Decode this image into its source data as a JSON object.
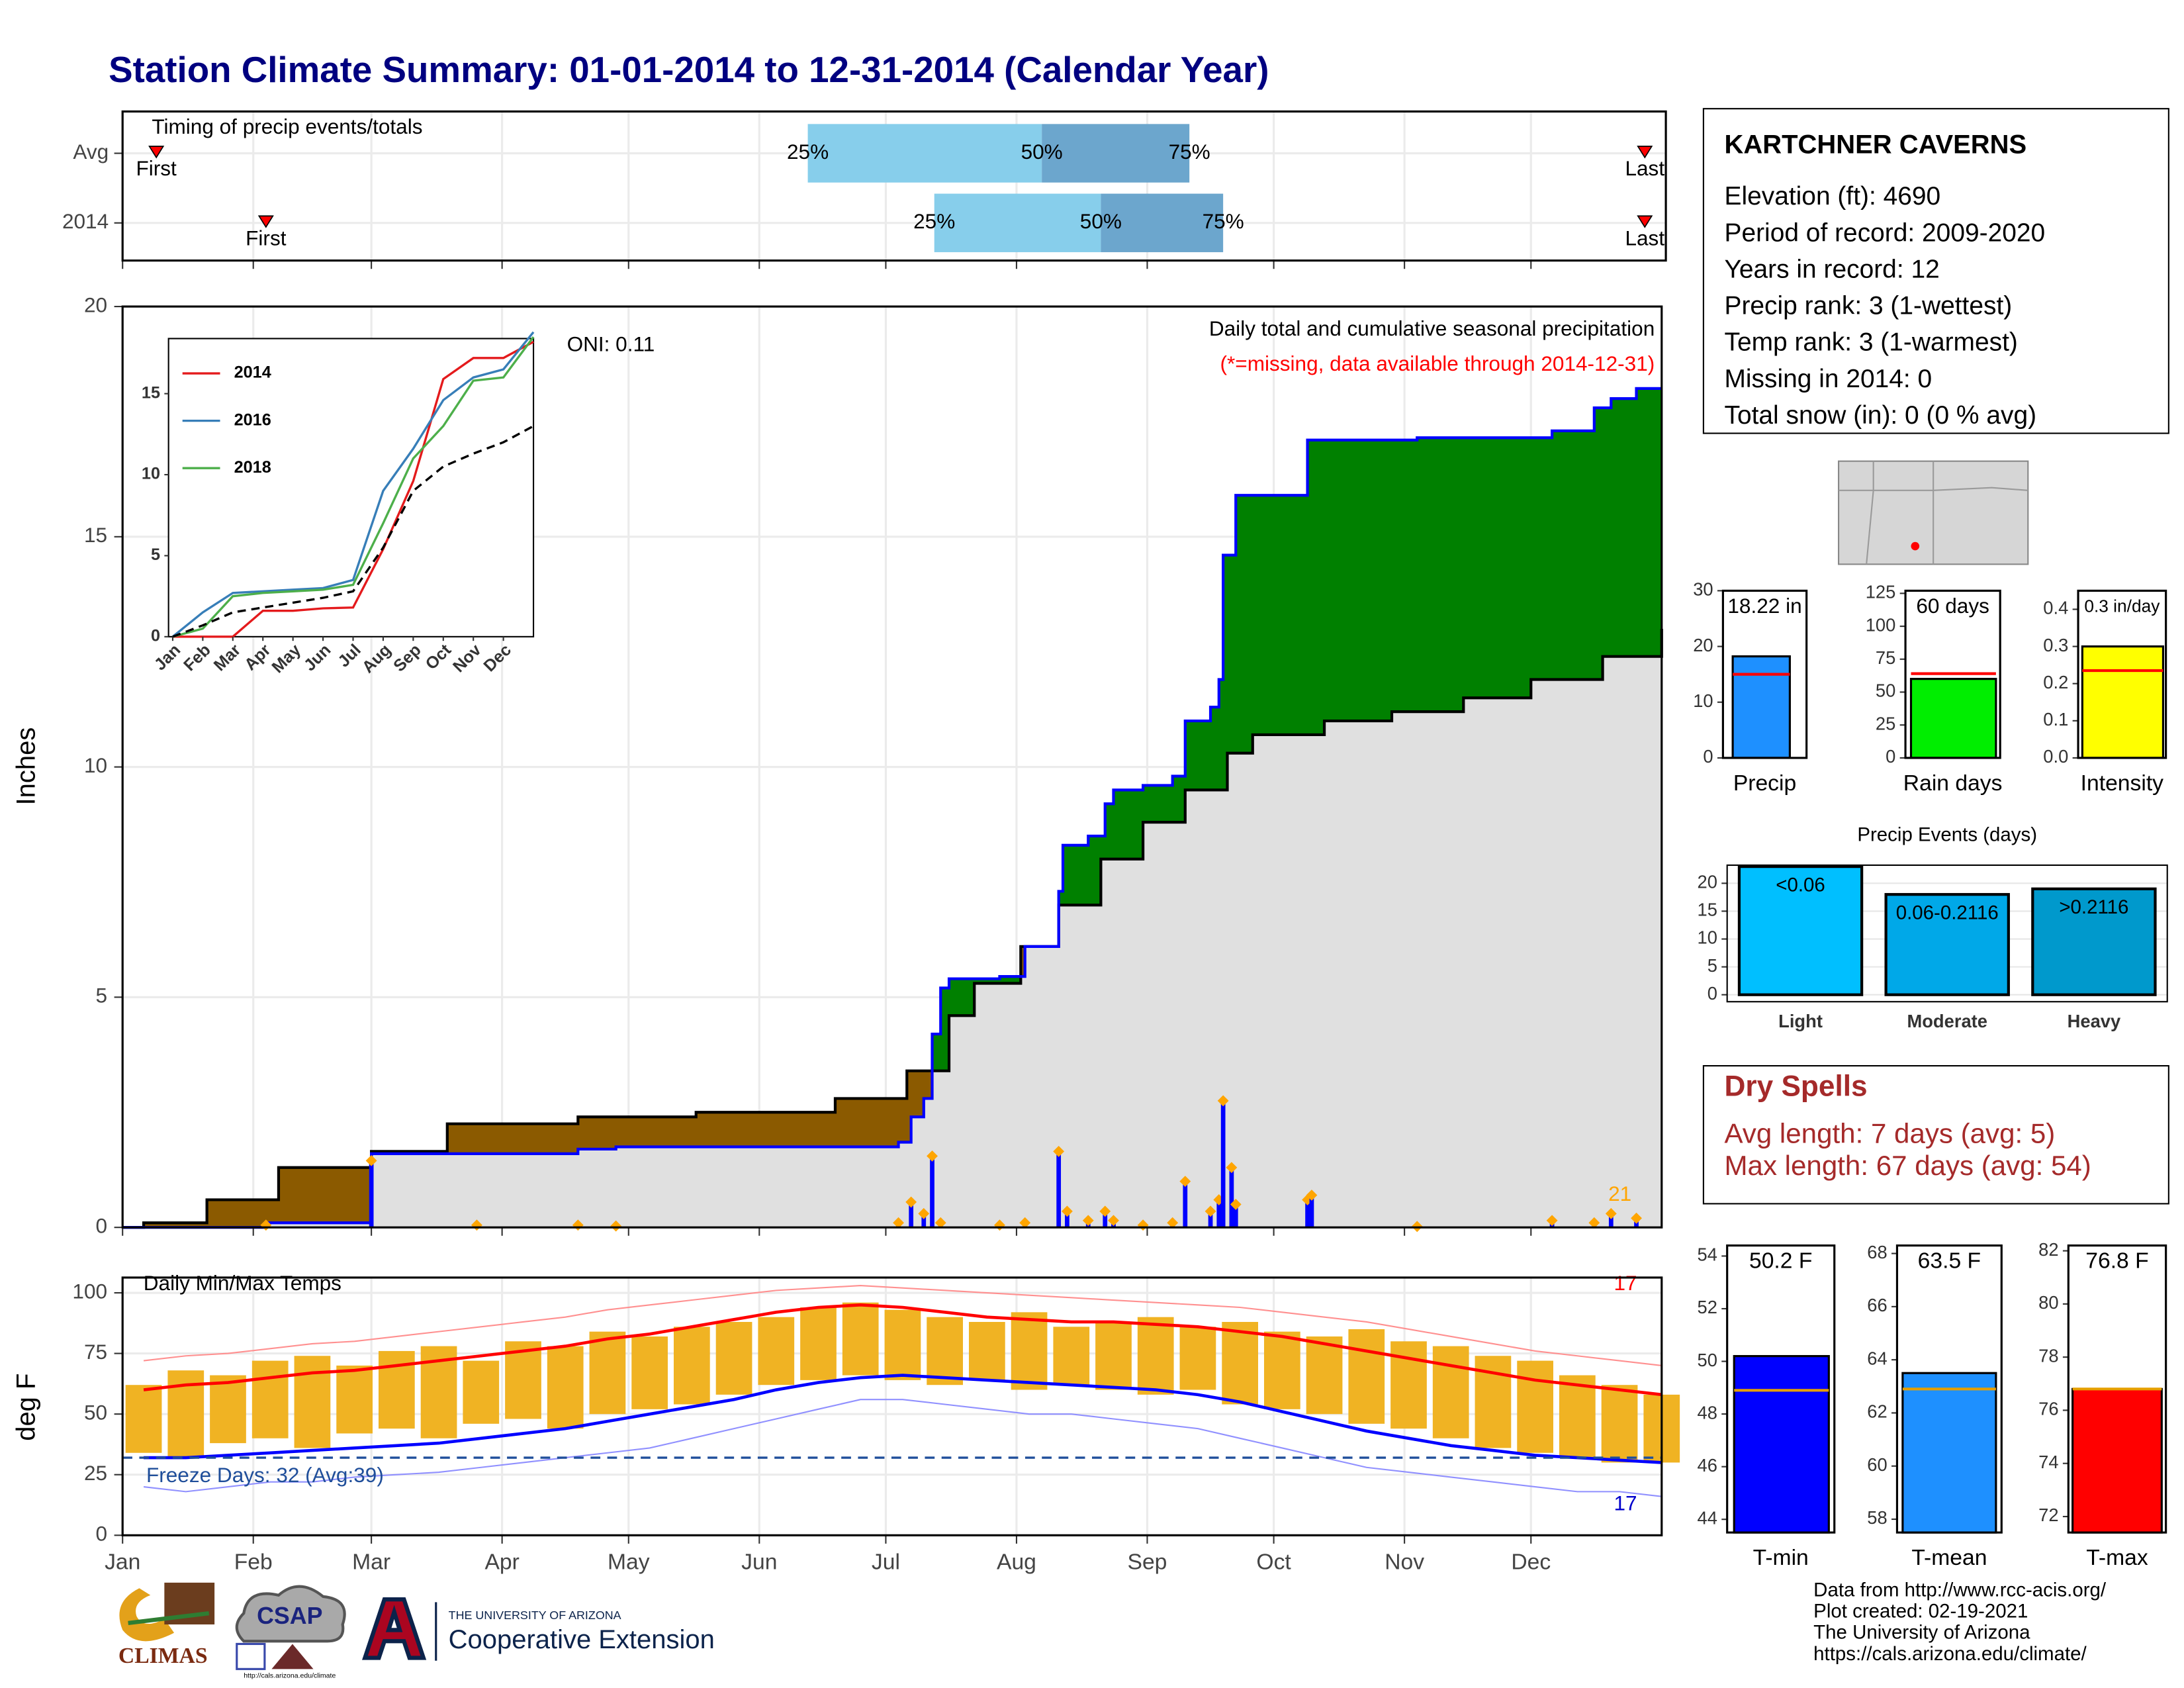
{
  "title": "Station Climate Summary: 01-01-2014 to 12-31-2014 (Calendar Year)",
  "station": {
    "name": "KARTCHNER CAVERNS",
    "lines": [
      "Elevation (ft): 4690",
      "Period of record: 2009-2020",
      "Years in record: 12",
      "Precip rank: 3 (1-wettest)",
      "Temp rank: 3 (1-warmest)",
      "Missing in 2014: 0",
      "Total snow (in): 0 (0 % avg)"
    ]
  },
  "dry_spells": {
    "title": "Dry Spells",
    "lines": [
      "Avg length: 7 days (avg: 5)",
      "Max length: 67 days (avg: 54)"
    ]
  },
  "footer": [
    "Data from http://www.rcc-acis.org/",
    "Plot created: 02-19-2021",
    "The University of Arizona",
    "https://cals.arizona.edu/climate/"
  ],
  "logos": {
    "climas": "CLIMAS",
    "csap": "CSAP",
    "csap_url": "http://cals.arizona.edu/climate",
    "ua_small": "THE UNIVERSITY OF ARIZONA",
    "ua_large": "Cooperative Extension"
  },
  "chart_data": [
    {
      "type": "timing",
      "title": "Timing of precip events/totals",
      "xlim": [
        0,
        365
      ],
      "rows": [
        "Avg",
        "2014"
      ],
      "first": [
        8,
        34
      ],
      "q25": [
        162.5,
        192.5
      ],
      "q50": [
        218,
        232
      ],
      "q75": [
        253,
        261
      ],
      "last": [
        361,
        361
      ],
      "labels": {
        "first": "First",
        "last": "Last",
        "q25": "25%",
        "q50": "50%",
        "q75": "75%"
      },
      "colors": {
        "low": "#87ceeb",
        "high": "#6ca6cd",
        "marker": "#ff0000"
      }
    },
    {
      "type": "cumulative_precip",
      "title": "Daily total and cumulative seasonal precipitation",
      "subtitle": "(*=missing, data available through 2014-12-31)",
      "annotation": "ONI: 0.11",
      "count_label": 21,
      "ylabel": "Inches",
      "xlim": [
        0,
        365
      ],
      "ylim": [
        0,
        20
      ],
      "yticks": [
        0,
        5,
        10,
        15,
        20
      ],
      "grid": true,
      "overlap_color": "#e0e0e0",
      "series": [
        {
          "color": "#0000ff",
          "fill": "#008000",
          "x": [
            0,
            34,
            59,
            108,
            117,
            184,
            187,
            190,
            192,
            194,
            196,
            208,
            214,
            222,
            223,
            229,
            233,
            235,
            242,
            249,
            252,
            258,
            260,
            261,
            264,
            281,
            307,
            339,
            349,
            353,
            359
          ],
          "values": [
            0,
            0.1,
            1.6,
            1.7,
            1.75,
            1.85,
            2.4,
            2.8,
            4.2,
            5.2,
            5.4,
            5.45,
            6.1,
            7.3,
            8.3,
            8.5,
            9.2,
            9.5,
            9.6,
            9.8,
            11.0,
            11.3,
            11.9,
            14.6,
            15.9,
            17.1,
            17.15,
            17.3,
            17.8,
            18.0,
            18.22
          ]
        },
        {
          "color": "#000000",
          "fill": "#8b5a00",
          "x": [
            0,
            5,
            20,
            37,
            59,
            77,
            108,
            136,
            169,
            186,
            196,
            202,
            213,
            222,
            232,
            242,
            252,
            262,
            268,
            285,
            301,
            318,
            334,
            351,
            365
          ],
          "values": [
            0,
            0.1,
            0.6,
            1.3,
            1.65,
            2.25,
            2.4,
            2.5,
            2.8,
            3.4,
            4.6,
            5.3,
            6.1,
            7.0,
            8.0,
            8.8,
            9.5,
            10.3,
            10.7,
            11.0,
            11.2,
            11.5,
            11.9,
            12.4,
            13.0
          ]
        }
      ],
      "daily": {
        "color": "#0000ff",
        "marker_color": "#ffa500",
        "x": [
          34,
          59,
          84,
          108,
          117,
          184,
          187,
          190,
          192,
          194,
          208,
          214,
          222,
          224,
          229,
          233,
          235,
          242,
          249,
          252,
          258,
          260,
          261,
          263,
          264,
          281,
          282,
          307,
          339,
          349,
          353,
          359
        ],
        "values": [
          0.05,
          1.45,
          0.05,
          0.05,
          0.03,
          0.1,
          0.55,
          0.3,
          1.55,
          0.1,
          0.05,
          0.1,
          1.65,
          0.35,
          0.15,
          0.35,
          0.15,
          0.05,
          0.1,
          1.0,
          0.35,
          0.6,
          2.75,
          1.3,
          0.5,
          0.6,
          0.7,
          0.02,
          0.15,
          0.1,
          0.3,
          0.2
        ]
      }
    },
    {
      "type": "line",
      "xlim": [
        0,
        12
      ],
      "ylim": [
        0,
        18.4
      ],
      "yticks": [
        0,
        5,
        10,
        15
      ],
      "xticks": [
        {
          "value": 0,
          "label": "Jan"
        },
        {
          "value": 1,
          "label": "Feb"
        },
        {
          "value": 2,
          "label": "Mar"
        },
        {
          "value": 3,
          "label": "Apr"
        },
        {
          "value": 4,
          "label": "May"
        },
        {
          "value": 5,
          "label": "Jun"
        },
        {
          "value": 6,
          "label": "Jul"
        },
        {
          "value": 7,
          "label": "Aug"
        },
        {
          "value": 8,
          "label": "Sep"
        },
        {
          "value": 9,
          "label": "Oct"
        },
        {
          "value": 10,
          "label": "Nov"
        },
        {
          "value": 11,
          "label": "Dec"
        }
      ],
      "x": [
        0,
        1,
        2,
        3,
        4,
        5,
        6,
        7,
        8,
        9,
        10,
        11,
        12
      ],
      "series": [
        {
          "name": "2014",
          "color": "#e41a1c",
          "values": [
            0,
            0,
            0,
            1.6,
            1.6,
            1.75,
            1.8,
            5.4,
            9.6,
            15.9,
            17.2,
            17.2,
            18.2
          ]
        },
        {
          "name": "2016",
          "color": "#377eb8",
          "values": [
            0,
            1.5,
            2.7,
            2.8,
            2.9,
            3.0,
            3.5,
            9.0,
            11.6,
            14.6,
            16.0,
            16.5,
            18.8
          ]
        },
        {
          "name": "2018",
          "color": "#4daf4a",
          "values": [
            0,
            0.5,
            2.5,
            2.7,
            2.8,
            2.9,
            3.2,
            7.0,
            11.0,
            13.0,
            15.8,
            16.0,
            18.5
          ]
        },
        {
          "color": "#000000",
          "dash": true,
          "values": [
            0,
            0.7,
            1.5,
            1.8,
            2.1,
            2.4,
            2.8,
            5.5,
            9.0,
            10.5,
            11.3,
            12.0,
            13.0
          ]
        }
      ]
    },
    {
      "type": "temperature",
      "title": "Daily Min/Max Temps",
      "ylabel": "deg F",
      "xlim": [
        0,
        365
      ],
      "ylim": [
        0,
        106.3
      ],
      "yticks": [
        0,
        25,
        50,
        75,
        100
      ],
      "xticks": [
        {
          "value": 0,
          "label": "Jan"
        },
        {
          "value": 31,
          "label": "Feb"
        },
        {
          "value": 59,
          "label": "Mar"
        },
        {
          "value": 90,
          "label": "Apr"
        },
        {
          "value": 120,
          "label": "May"
        },
        {
          "value": 151,
          "label": "Jun"
        },
        {
          "value": 181,
          "label": "Jul"
        },
        {
          "value": 212,
          "label": "Aug"
        },
        {
          "value": 243,
          "label": "Sep"
        },
        {
          "value": 273,
          "label": "Oct"
        },
        {
          "value": 304,
          "label": "Nov"
        },
        {
          "value": 334,
          "label": "Dec"
        }
      ],
      "grid": true,
      "freeze": 32,
      "freeze_label": "Freeze Days: 32 (Avg:39)",
      "freeze_color": "#1f4e9a",
      "record_high_count": 17,
      "record_low_count": 17,
      "bar_color": "#f0b323",
      "x": [
        5,
        15,
        25,
        35,
        45,
        55,
        65,
        75,
        85,
        95,
        105,
        115,
        125,
        135,
        145,
        155,
        165,
        175,
        185,
        195,
        205,
        215,
        225,
        235,
        245,
        255,
        265,
        275,
        285,
        295,
        305,
        315,
        325,
        335,
        345,
        355,
        365
      ],
      "max": [
        62,
        68,
        66,
        72,
        74,
        70,
        76,
        78,
        72,
        80,
        78,
        84,
        82,
        86,
        88,
        90,
        94,
        96,
        93,
        90,
        88,
        92,
        86,
        88,
        90,
        86,
        88,
        84,
        82,
        85,
        80,
        78,
        74,
        72,
        66,
        62,
        58
      ],
      "min": [
        34,
        32,
        38,
        40,
        36,
        42,
        44,
        40,
        46,
        48,
        44,
        50,
        52,
        54,
        58,
        62,
        64,
        66,
        64,
        62,
        64,
        60,
        62,
        60,
        58,
        60,
        54,
        52,
        50,
        46,
        44,
        40,
        36,
        34,
        32,
        30,
        30
      ],
      "series": [
        {
          "color": "#ff9090",
          "thin": true,
          "values": [
            72,
            74,
            75,
            77,
            79,
            80,
            82,
            84,
            86,
            88,
            90,
            93,
            95,
            97,
            99,
            101,
            102,
            103,
            102,
            101,
            100,
            99,
            98,
            97,
            96,
            95,
            94,
            92,
            90,
            88,
            85,
            82,
            79,
            76,
            74,
            72,
            70
          ]
        },
        {
          "color": "#9090ff",
          "thin": true,
          "values": [
            20,
            18,
            20,
            22,
            22,
            24,
            25,
            26,
            28,
            30,
            32,
            34,
            36,
            40,
            44,
            48,
            52,
            56,
            56,
            54,
            52,
            50,
            50,
            48,
            46,
            44,
            40,
            36,
            32,
            28,
            26,
            24,
            22,
            20,
            18,
            18,
            16
          ]
        },
        {
          "color": "#ff0000",
          "values": [
            60,
            62,
            63,
            65,
            67,
            68,
            70,
            72,
            74,
            76,
            78,
            81,
            83,
            86,
            89,
            92,
            94,
            95,
            94,
            92,
            90,
            89,
            88,
            88,
            87,
            86,
            84,
            82,
            79,
            76,
            73,
            70,
            67,
            64,
            62,
            60,
            58
          ]
        },
        {
          "color": "#0000ff",
          "values": [
            32,
            32,
            33,
            34,
            35,
            36,
            37,
            38,
            40,
            42,
            44,
            47,
            50,
            53,
            56,
            60,
            63,
            65,
            66,
            65,
            64,
            63,
            62,
            61,
            60,
            58,
            55,
            51,
            47,
            43,
            40,
            37,
            35,
            33,
            32,
            31,
            30
          ]
        }
      ]
    },
    {
      "type": "bar",
      "categories": [
        "Precip"
      ],
      "values": [
        18.22
      ],
      "value_labels": [
        "18.22 in"
      ],
      "average": 15,
      "ylim": [
        0,
        30
      ],
      "yticks": [
        0,
        10,
        20,
        30
      ],
      "color": "#1e90ff",
      "avg_color": "#ff0000"
    },
    {
      "type": "bar",
      "categories": [
        "Rain days"
      ],
      "values": [
        60
      ],
      "value_labels": [
        "60 days"
      ],
      "average": 64,
      "ylim": [
        0,
        127
      ],
      "yticks": [
        0,
        25,
        50,
        75,
        100,
        125
      ],
      "color": "#00ee00",
      "avg_color": "#ff0000"
    },
    {
      "type": "bar",
      "categories": [
        "Intensity"
      ],
      "values": [
        0.3
      ],
      "value_labels": [
        "0.3 in/day"
      ],
      "average": 0.235,
      "ylim": [
        0,
        0.45
      ],
      "yticks": [
        {
          "value": 0,
          "label": "0.0"
        },
        0.1,
        0.2,
        0.3,
        {
          "value": 0.4,
          "label": "0.4"
        }
      ],
      "color": "#ffff00",
      "avg_color": "#ff0000"
    },
    {
      "type": "events",
      "title": "Precip Events (days)",
      "categories": [
        "Light",
        "Moderate",
        "Heavy"
      ],
      "bar_labels": [
        "<0.06",
        "0.06-0.2116",
        ">0.2116"
      ],
      "values": [
        23,
        18,
        19
      ],
      "ylim": [
        -1.25,
        23.25
      ],
      "yticks": [
        0,
        5,
        10,
        15,
        20
      ],
      "colors": [
        "#00bfff",
        "#00a8e8",
        "#0099cc"
      ],
      "grid": true
    },
    {
      "type": "bar",
      "categories": [
        "T-min"
      ],
      "values": [
        50.2
      ],
      "value_labels": [
        "50.2 F"
      ],
      "average": 48.9,
      "ylim": [
        43.5,
        54.4
      ],
      "yticks": [
        44,
        46,
        48,
        50,
        52,
        54
      ],
      "color": "#0000ff",
      "avg_color": "#e69f00"
    },
    {
      "type": "bar",
      "categories": [
        "T-mean"
      ],
      "values": [
        63.5
      ],
      "value_labels": [
        "63.5 F"
      ],
      "average": 62.9,
      "ylim": [
        57.5,
        68.3
      ],
      "yticks": [
        58,
        60,
        62,
        64,
        66,
        68
      ],
      "color": "#1e90ff",
      "avg_color": "#e69f00"
    },
    {
      "type": "bar",
      "categories": [
        "T-max"
      ],
      "values": [
        76.8
      ],
      "value_labels": [
        "76.8 F"
      ],
      "average": 76.8,
      "ylim": [
        71.4,
        82.2
      ],
      "yticks": [
        72,
        74,
        76,
        78,
        80,
        82
      ],
      "color": "#ff0000",
      "avg_color": "#e69f00"
    }
  ]
}
